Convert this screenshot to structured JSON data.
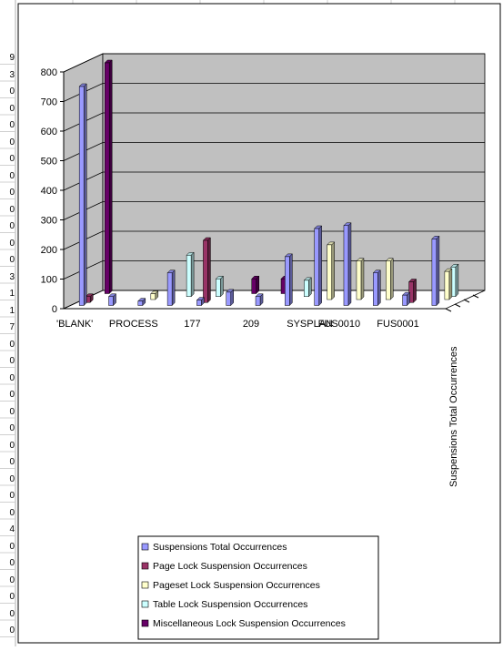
{
  "sheet": {
    "row_digits": [
      "9",
      "3",
      "0",
      "0",
      "0",
      "0",
      "0",
      "0",
      "0",
      "0",
      "0",
      "0",
      "0",
      "3",
      "1",
      "1",
      "7",
      "0",
      "0",
      "0",
      "0",
      "0",
      "0",
      "0",
      "0",
      "0",
      "0",
      "0",
      "4",
      "0",
      "0",
      "0",
      "0",
      "0",
      "0"
    ]
  },
  "chart_data": {
    "type": "bar",
    "subtype": "3d-clustered-column",
    "categories": [
      "'BLANK'",
      "",
      "PROCESS",
      "",
      "177",
      "",
      "209",
      "",
      "SYSPLAN",
      "FUS0010",
      "",
      "FUS0001",
      ""
    ],
    "x_tick_labels": [
      "'BLANK'",
      "PROCESS",
      "177",
      "209",
      "SYSPLAN",
      "FUS0010",
      "FUS0001"
    ],
    "depth_label": "Suspensions Total Occurrences",
    "ylim": [
      0,
      800
    ],
    "y_ticks": [
      0,
      100,
      200,
      300,
      400,
      500,
      600,
      700,
      800
    ],
    "grid": true,
    "legend_position": "bottom",
    "series": [
      {
        "name": "Suspensions Total Occurrences",
        "color": "#9999FF",
        "values": [
          740,
          30,
          15,
          110,
          18,
          45,
          30,
          165,
          260,
          270,
          110,
          35,
          225
        ]
      },
      {
        "name": "Page Lock Suspension Occurrences",
        "color": "#993366",
        "values": [
          20,
          0,
          0,
          0,
          210,
          0,
          0,
          0,
          0,
          0,
          0,
          70,
          0
        ]
      },
      {
        "name": "Pageset Lock Suspension Occurrences",
        "color": "#FFFFCC",
        "values": [
          0,
          0,
          20,
          0,
          0,
          0,
          0,
          0,
          185,
          130,
          130,
          0,
          95
        ]
      },
      {
        "name": "Table Lock Suspension Occurrences",
        "color": "#CCFFFF",
        "values": [
          0,
          0,
          0,
          140,
          60,
          0,
          0,
          55,
          0,
          0,
          0,
          0,
          100
        ]
      },
      {
        "name": "Miscellaneous Lock Suspension Occurrences",
        "color": "#660066",
        "values": [
          780,
          0,
          0,
          0,
          0,
          50,
          50,
          0,
          0,
          0,
          0,
          0,
          0
        ]
      }
    ]
  }
}
